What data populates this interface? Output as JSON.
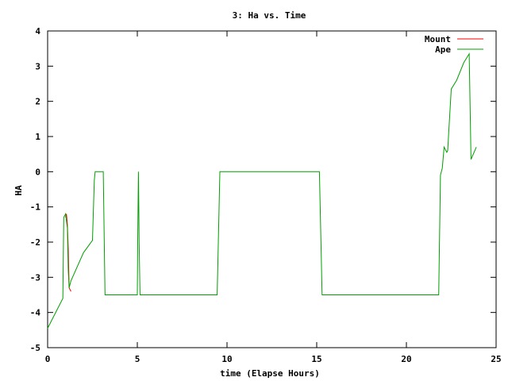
{
  "chart_data": {
    "type": "line",
    "title": "3: Ha vs. Time",
    "xlabel": "time (Elapse Hours)",
    "ylabel": "HA",
    "xlim": [
      0,
      25
    ],
    "ylim": [
      -5,
      4
    ],
    "xticks": [
      "0",
      "5",
      "10",
      "15",
      "20",
      "25"
    ],
    "yticks": [
      "-5",
      "-4",
      "-3",
      "-2",
      "-1",
      "0",
      "1",
      "2",
      "3",
      "4"
    ],
    "grid": false,
    "legend_position": "top-right",
    "series": [
      {
        "name": "Mount",
        "color": "#ff0000",
        "x": [
          1.0,
          1.05,
          1.1,
          1.15,
          1.2,
          1.3
        ],
        "y": [
          -1.3,
          -1.2,
          -1.5,
          -2.2,
          -3.3,
          -3.4
        ]
      },
      {
        "name": "Ape",
        "color": "#00a000",
        "x": [
          0,
          0.5,
          0.85,
          0.9,
          1.0,
          1.1,
          1.15,
          1.2,
          1.3,
          2.0,
          2.5,
          2.6,
          2.65,
          3.1,
          3.2,
          5.0,
          5.02,
          5.06,
          5.1,
          5.15,
          9.45,
          9.6,
          15.15,
          15.3,
          21.8,
          21.9,
          22.0,
          22.1,
          22.25,
          22.3,
          22.5,
          22.8,
          23.2,
          23.5,
          23.6,
          23.9
        ],
        "y": [
          -4.45,
          -3.95,
          -3.6,
          -1.3,
          -1.2,
          -1.6,
          -2.8,
          -3.3,
          -3.1,
          -2.3,
          -1.95,
          -0.25,
          0,
          0,
          -3.5,
          -3.5,
          -2.0,
          0,
          -2.0,
          -3.5,
          -3.5,
          0,
          0,
          -3.5,
          -3.5,
          -0.1,
          0.1,
          0.7,
          0.55,
          0.6,
          2.35,
          2.6,
          3.1,
          3.35,
          0.35,
          0.7
        ]
      }
    ]
  }
}
